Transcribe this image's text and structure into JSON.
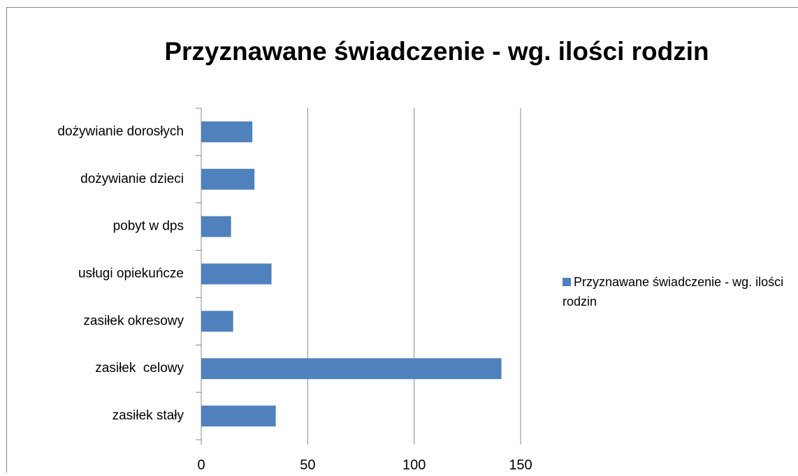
{
  "chart_data": {
    "type": "bar",
    "orientation": "horizontal",
    "title": "Przyznawane świadczenie - wg. ilości rodzin",
    "categories": [
      "dożywianie dorosłych",
      "dożywianie dzieci",
      "pobyt w dps",
      "usługi opiekuńcze",
      "zasiłek okresowy",
      "zasiłek  celowy",
      "zasiłek stały"
    ],
    "series": [
      {
        "name": "Przyznawane świadczenie - wg. ilości rodzin",
        "color": "#4f81bd",
        "values": [
          24,
          25,
          14,
          33,
          15,
          141,
          35
        ]
      }
    ],
    "xlim": [
      0,
      150
    ],
    "xticks": [
      0,
      50,
      100,
      150
    ],
    "grid": true,
    "legend": "right"
  }
}
